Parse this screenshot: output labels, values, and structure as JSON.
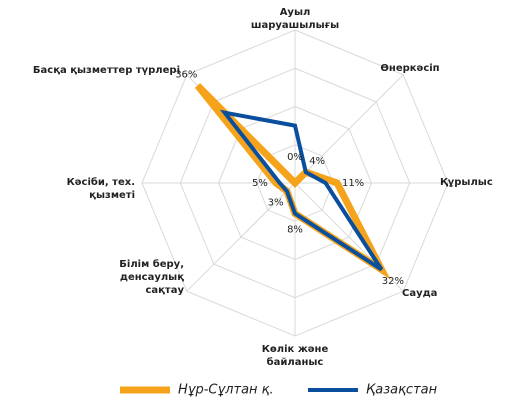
{
  "chart_data": {
    "type": "radar",
    "categories": [
      "Ауыл шаруашылығы",
      "Өнеркәсіп",
      "Құрылыс",
      "Сауда",
      "Көлік және байланыс",
      "Білім беру, денсаулық сақтау",
      "Кәсіби, тех. қызметі",
      "Басқа қызметтер түрлері"
    ],
    "series": [
      {
        "name": "Нұр-Сұлтан қ.",
        "color": "#f5a31a",
        "values": [
          0,
          4,
          11,
          32,
          8,
          3,
          5,
          36
        ],
        "value_labels": [
          "0%",
          "4%",
          "11%",
          "32%",
          "8%",
          "3%",
          "5%",
          "36%"
        ]
      },
      {
        "name": "Қазақстан",
        "color": "#0a4f9e",
        "values": [
          15,
          4,
          8,
          32,
          8,
          3,
          4,
          26
        ]
      }
    ],
    "ylim": [
      0,
      40
    ],
    "yticks": [
      10,
      20,
      30,
      40
    ],
    "grid": true,
    "legend": "bottom"
  }
}
